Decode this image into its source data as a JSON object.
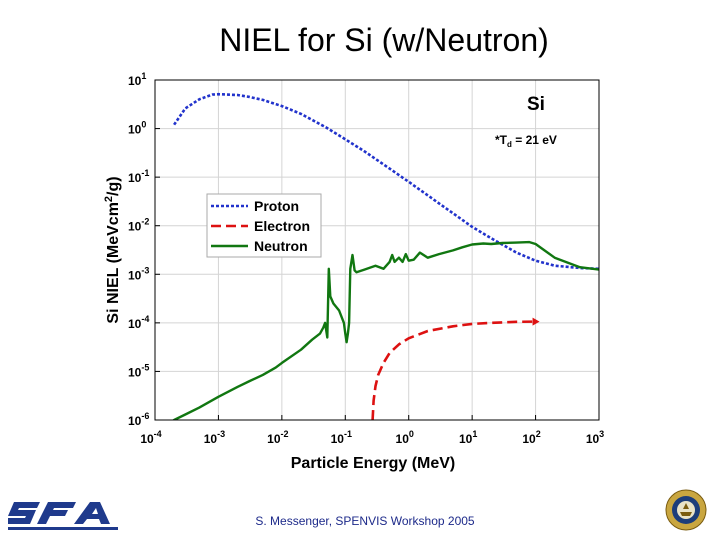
{
  "slide": {
    "title": "NIEL for Si (w/Neutron)",
    "footer": "S. Messenger, SPENVIS Workshop 2005",
    "logo_left_text": "SFA"
  },
  "chart_data": {
    "type": "line",
    "title": "",
    "xlabel": "Particle Energy (MeV)",
    "ylabel": "Si NIEL (MeVcm2/g)",
    "xscale": "log",
    "yscale": "log",
    "xlim": [
      0.0001,
      1000
    ],
    "ylim": [
      1e-06,
      10
    ],
    "x_ticks": [
      {
        "base": "10",
        "exp": "-4",
        "value": 0.0001
      },
      {
        "base": "10",
        "exp": "-3",
        "value": 0.001
      },
      {
        "base": "10",
        "exp": "-2",
        "value": 0.01
      },
      {
        "base": "10",
        "exp": "-1",
        "value": 0.1
      },
      {
        "base": "10",
        "exp": "0",
        "value": 1
      },
      {
        "base": "10",
        "exp": "1",
        "value": 10
      },
      {
        "base": "10",
        "exp": "2",
        "value": 100
      },
      {
        "base": "10",
        "exp": "3",
        "value": 1000
      }
    ],
    "y_ticks": [
      {
        "base": "10",
        "exp": "-6",
        "value": 1e-06
      },
      {
        "base": "10",
        "exp": "-5",
        "value": 1e-05
      },
      {
        "base": "10",
        "exp": "-4",
        "value": 0.0001
      },
      {
        "base": "10",
        "exp": "-3",
        "value": 0.001
      },
      {
        "base": "10",
        "exp": "-2",
        "value": 0.01
      },
      {
        "base": "10",
        "exp": "-1",
        "value": 0.1
      },
      {
        "base": "10",
        "exp": "0",
        "value": 1
      },
      {
        "base": "10",
        "exp": "1",
        "value": 10
      }
    ],
    "grid": true,
    "legend_position": "center-left",
    "annotations": {
      "material": "Si",
      "td_prefix": "*T",
      "td_sub": "d",
      "td_suffix": " = 21 eV"
    },
    "series": [
      {
        "name": "Proton",
        "color": "#2233cc",
        "style": "dotted",
        "x": [
          0.0002,
          0.0003,
          0.0005,
          0.0008,
          0.001,
          0.002,
          0.003,
          0.005,
          0.01,
          0.02,
          0.05,
          0.1,
          0.2,
          0.5,
          1,
          2,
          5,
          10,
          20,
          50,
          100,
          200,
          500,
          1000
        ],
        "y": [
          1.2,
          2.6,
          4.0,
          5.0,
          5.1,
          4.9,
          4.5,
          3.9,
          2.9,
          2.0,
          1.05,
          0.6,
          0.34,
          0.15,
          0.08,
          0.042,
          0.018,
          0.0095,
          0.0055,
          0.0028,
          0.0019,
          0.0015,
          0.00135,
          0.0013
        ]
      },
      {
        "name": "Electron",
        "color": "#dd1111",
        "style": "dashed",
        "x": [
          0.27,
          0.28,
          0.3,
          0.33,
          0.4,
          0.5,
          0.7,
          1,
          2,
          5,
          10,
          20,
          50,
          100
        ],
        "y": [
          1e-06,
          2.5e-06,
          5e-06,
          8.5e-06,
          1.5e-05,
          2.4e-05,
          3.6e-05,
          4.8e-05,
          6.8e-05,
          8.5e-05,
          9.5e-05,
          0.0001,
          0.000105,
          0.000106
        ]
      },
      {
        "name": "Neutron",
        "color": "#117711",
        "style": "solid",
        "x": [
          0.0001,
          0.00015,
          0.0002,
          0.0003,
          0.0005,
          0.001,
          0.002,
          0.003,
          0.005,
          0.008,
          0.01,
          0.02,
          0.03,
          0.04,
          0.045,
          0.048,
          0.052,
          0.055,
          0.058,
          0.065,
          0.08,
          0.095,
          0.1,
          0.105,
          0.11,
          0.115,
          0.12,
          0.13,
          0.14,
          0.15,
          0.2,
          0.3,
          0.4,
          0.5,
          0.55,
          0.6,
          0.7,
          0.8,
          0.9,
          1,
          1.2,
          1.5,
          2,
          3,
          5,
          7,
          10,
          15,
          20,
          30,
          50,
          80,
          100,
          200,
          500,
          1000
        ],
        "y": [
          6e-07,
          8e-07,
          1e-06,
          1.3e-06,
          1.8e-06,
          3e-06,
          4.8e-06,
          6.2e-06,
          8.5e-06,
          1.2e-05,
          1.5e-05,
          2.8e-05,
          4.5e-05,
          6e-05,
          8e-05,
          0.0001,
          5e-05,
          0.0013,
          0.00035,
          0.00025,
          0.00018,
          0.0001,
          6e-05,
          4e-05,
          6e-05,
          0.0001,
          0.0013,
          0.0025,
          0.0012,
          0.0011,
          0.00125,
          0.0015,
          0.0013,
          0.0018,
          0.0025,
          0.0018,
          0.0022,
          0.0018,
          0.0026,
          0.0019,
          0.002,
          0.0028,
          0.0022,
          0.0026,
          0.0031,
          0.0036,
          0.0041,
          0.0043,
          0.0042,
          0.0044,
          0.0045,
          0.0046,
          0.0042,
          0.0022,
          0.0014,
          0.00125
        ]
      }
    ]
  }
}
